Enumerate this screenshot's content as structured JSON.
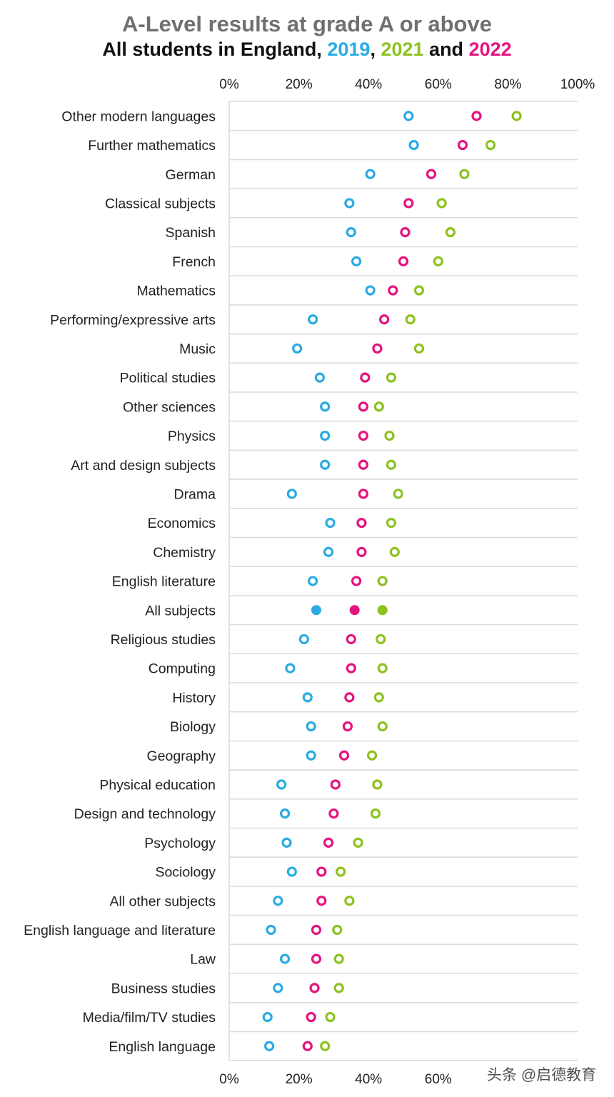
{
  "chart_data": {
    "type": "scatter",
    "title": "A-Level results at grade A or above",
    "subtitle": {
      "prefix": "All students in England, ",
      "sep1": ", ",
      "sep2": " and ",
      "year1": "2019",
      "year2": "2021",
      "year3": "2022"
    },
    "xlim": [
      0,
      100
    ],
    "xticks": [
      "0%",
      "20%",
      "40%",
      "60%",
      "80%",
      "100%"
    ],
    "xtick_values": [
      0,
      20,
      40,
      60,
      80,
      100
    ],
    "bottom_xticks": [
      "0%",
      "20%",
      "40%",
      "60%"
    ],
    "bottom_xtick_values": [
      0,
      20,
      40,
      60
    ],
    "highlight_category": "All subjects",
    "categories": [
      "Other modern languages",
      "Further mathematics",
      "German",
      "Classical subjects",
      "Spanish",
      "French",
      "Mathematics",
      "Performing/expressive arts",
      "Music",
      "Political studies",
      "Other sciences",
      "Physics",
      "Art and design subjects",
      "Drama",
      "Economics",
      "Chemistry",
      "English literature",
      "All subjects",
      "Religious studies",
      "Computing",
      "History",
      "Biology",
      "Geography",
      "Physical education",
      "Design and technology",
      "Psychology",
      "Sociology",
      "All other subjects",
      "English language and literature",
      "Law",
      "Business studies",
      "Media/film/TV studies",
      "English language"
    ],
    "series": [
      {
        "name": "2019",
        "color": "#2AABE2",
        "values": [
          51.5,
          53,
          40.5,
          34.5,
          35,
          36.5,
          40.5,
          24,
          19.5,
          26,
          27.5,
          27.5,
          27.5,
          18,
          29,
          28.5,
          24,
          25,
          21.5,
          17.5,
          22.5,
          23.5,
          23.5,
          15,
          16,
          16.5,
          18,
          14,
          12,
          16,
          14,
          11,
          11.5
        ]
      },
      {
        "name": "2021",
        "color": "#8DC21F",
        "values": [
          82.5,
          75,
          67.5,
          61,
          63.5,
          60,
          54.5,
          52,
          54.5,
          46.5,
          43,
          46,
          46.5,
          48.5,
          46.5,
          47.5,
          44,
          44,
          43.5,
          44,
          43,
          44,
          41,
          42.5,
          42,
          37,
          32,
          34.5,
          31,
          31.5,
          31.5,
          29,
          27.5
        ]
      },
      {
        "name": "2022",
        "color": "#E5137F",
        "values": [
          71,
          67,
          58,
          51.5,
          50.5,
          50,
          47,
          44.5,
          42.5,
          39,
          38.5,
          38.5,
          38.5,
          38.5,
          38,
          38,
          36.5,
          36,
          35,
          35,
          34.5,
          34,
          33,
          30.5,
          30,
          28.5,
          26.5,
          26.5,
          25,
          25,
          24.5,
          23.5,
          22.5
        ]
      }
    ]
  },
  "watermark": "头条 @启德教育"
}
